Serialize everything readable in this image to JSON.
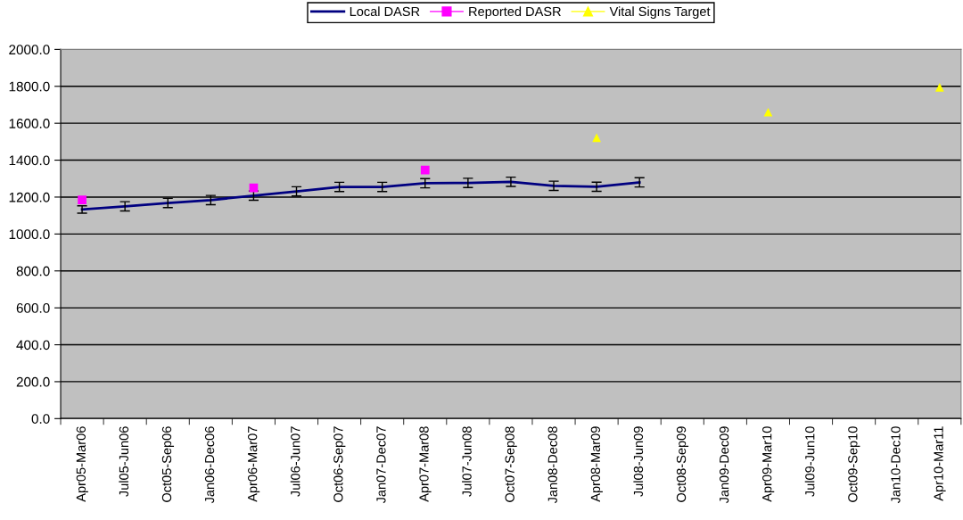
{
  "chart_data": {
    "type": "line",
    "categories": [
      "Apr05-Mar06",
      "Jul05-Jun06",
      "Oct05-Sep06",
      "Jan06-Dec06",
      "Apr06-Mar07",
      "Jul06-Jun07",
      "Oct06-Sep07",
      "Jan07-Dec07",
      "Apr07-Mar08",
      "Jul07-Jun08",
      "Oct07-Sep08",
      "Jan08-Dec08",
      "Apr08-Mar09",
      "Jul08-Jun09",
      "Oct08-Sep09",
      "Jan09-Dec09",
      "Apr09-Mar10",
      "Jul09-Jun10",
      "Oct09-Sep10",
      "Jan10-Dec10",
      "Apr10-Mar11"
    ],
    "ylim": [
      0,
      2000
    ],
    "yticks": [
      {
        "value": 0,
        "label": "0.0"
      },
      {
        "value": 200,
        "label": "200.0"
      },
      {
        "value": 400,
        "label": "400.0"
      },
      {
        "value": 600,
        "label": "600.0"
      },
      {
        "value": 800,
        "label": "800.0"
      },
      {
        "value": 1000,
        "label": "1000.0"
      },
      {
        "value": 1200,
        "label": "1200.0"
      },
      {
        "value": 1400,
        "label": "1400.0"
      },
      {
        "value": 1600,
        "label": "1600.0"
      },
      {
        "value": 1800,
        "label": "1800.0"
      },
      {
        "value": 2000,
        "label": "2000.0"
      }
    ],
    "grid": "y",
    "legend": "top",
    "line_style": "solid",
    "series": [
      {
        "name": "Local DASR",
        "color": "#000080",
        "marker": "none",
        "values": [
          1133,
          1150,
          1168,
          1184,
          1208,
          1231,
          1255,
          1255,
          1275,
          1277,
          1283,
          1261,
          1256,
          1280,
          null,
          null,
          null,
          null,
          null,
          null,
          null
        ],
        "errors": [
          20,
          25,
          25,
          25,
          25,
          25,
          25,
          25,
          25,
          25,
          25,
          25,
          25,
          25,
          null,
          null,
          null,
          null,
          null,
          null,
          null
        ]
      },
      {
        "name": "Reported DASR",
        "type": "scatter",
        "color": "#ff00ff",
        "marker": "square",
        "values": [
          1185,
          null,
          null,
          null,
          1250,
          null,
          null,
          null,
          1347,
          null,
          null,
          null,
          null,
          null,
          null,
          null,
          null,
          null,
          null,
          null,
          null
        ]
      },
      {
        "name": "Vital Signs Target",
        "type": "scatter",
        "color": "#ffff00",
        "marker": "triangle",
        "values": [
          null,
          null,
          null,
          null,
          null,
          null,
          null,
          null,
          null,
          null,
          null,
          null,
          1522,
          null,
          null,
          null,
          1660,
          null,
          null,
          null,
          1795
        ]
      }
    ]
  }
}
